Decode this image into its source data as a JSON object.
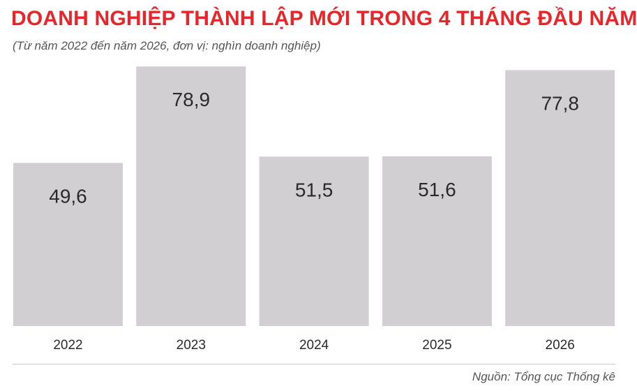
{
  "title": "DOANH NGHIỆP THÀNH LẬP MỚI TRONG 4 THÁNG ĐẦU NĂM",
  "subtitle": "(Từ năm 2022 đến năm 2026, đơn vị: nghìn doanh nghiệp)",
  "source": "Nguồn: Tổng cục Thống kê",
  "colors": {
    "title": "#e6262a",
    "bar": "#d2cfd2",
    "label": "#2a2a2a"
  },
  "chart_data": {
    "type": "bar",
    "categories": [
      "2022",
      "2023",
      "2024",
      "2025",
      "2026"
    ],
    "values": [
      49.6,
      78.9,
      51.5,
      51.6,
      77.8
    ],
    "value_labels": [
      "49,6",
      "78,9",
      "51,5",
      "51,6",
      "77,8"
    ],
    "title": "DOANH NGHIỆP THÀNH LẬP MỚI TRONG 4 THÁNG ĐẦU NĂM",
    "xlabel": "",
    "ylabel": "",
    "unit": "nghìn doanh nghiệp",
    "ylim": [
      0,
      80
    ],
    "grid": false,
    "legend": "none"
  }
}
